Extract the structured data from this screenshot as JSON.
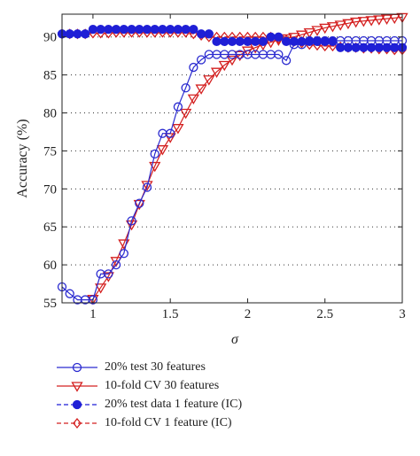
{
  "chart_data": {
    "type": "line",
    "xlabel": "σ",
    "ylabel": "Accuracy (%)",
    "xlim": [
      0.8,
      3.0
    ],
    "ylim": [
      55,
      93
    ],
    "xticks": [
      1,
      1.5,
      2,
      2.5,
      3
    ],
    "xtick_labels": [
      "1",
      "1.5",
      "2",
      "2.5",
      "3"
    ],
    "yticks": [
      55,
      60,
      65,
      70,
      75,
      80,
      85,
      90
    ],
    "ytick_labels": [
      "55",
      "60",
      "65",
      "70",
      "75",
      "80",
      "85",
      "90"
    ],
    "grid": "dotted, horizontal",
    "legend_placement": "below plot",
    "series": [
      {
        "name": "20% test 30 features",
        "color": "#2b2bd0",
        "marker": "circle-open",
        "line": "solid",
        "x": [
          0.8,
          0.85,
          0.9,
          0.95,
          1.0,
          1.05,
          1.1,
          1.15,
          1.2,
          1.25,
          1.3,
          1.35,
          1.4,
          1.45,
          1.5,
          1.55,
          1.6,
          1.65,
          1.7,
          1.75,
          1.8,
          1.85,
          1.9,
          1.95,
          2.0,
          2.05,
          2.1,
          2.15,
          2.2,
          2.25,
          2.3,
          2.35,
          2.4,
          2.45,
          2.5,
          2.55,
          2.6,
          2.65,
          2.7,
          2.75,
          2.8,
          2.85,
          2.9,
          2.95,
          3.0
        ],
        "y": [
          57.1,
          56.2,
          55.4,
          55.4,
          55.4,
          58.8,
          58.8,
          60.0,
          61.5,
          65.8,
          68.1,
          70.2,
          74.6,
          77.3,
          77.3,
          80.8,
          83.3,
          86.0,
          87.0,
          87.7,
          87.7,
          87.7,
          87.7,
          87.7,
          87.7,
          87.7,
          87.7,
          87.7,
          87.7,
          86.9,
          89.0,
          89.0,
          89.5,
          89.5,
          89.5,
          89.5,
          89.5,
          89.5,
          89.5,
          89.5,
          89.5,
          89.5,
          89.5,
          89.5,
          89.5
        ]
      },
      {
        "name": "10-fold CV 30 features",
        "color": "#d42020",
        "marker": "triangle-down-open",
        "line": "solid",
        "x": [
          1.0,
          1.05,
          1.1,
          1.15,
          1.2,
          1.25,
          1.3,
          1.35,
          1.4,
          1.45,
          1.5,
          1.55,
          1.6,
          1.65,
          1.7,
          1.75,
          1.8,
          1.85,
          1.9,
          1.95,
          2.0,
          2.05,
          2.1,
          2.15,
          2.2,
          2.25,
          2.3,
          2.35,
          2.4,
          2.45,
          2.5,
          2.55,
          2.6,
          2.65,
          2.7,
          2.75,
          2.8,
          2.85,
          2.9,
          2.95,
          3.0
        ],
        "y": [
          55.5,
          57.0,
          58.5,
          60.5,
          62.8,
          65.3,
          68.0,
          70.5,
          73.0,
          75.2,
          76.8,
          78.0,
          80.0,
          81.9,
          83.2,
          84.4,
          85.4,
          86.3,
          87.0,
          87.6,
          88.2,
          88.6,
          89.0,
          89.3,
          89.6,
          89.8,
          90.0,
          90.3,
          90.6,
          90.9,
          91.2,
          91.4,
          91.6,
          91.8,
          92.0,
          92.1,
          92.2,
          92.3,
          92.4,
          92.5,
          92.6
        ]
      },
      {
        "name": "20% test data 1 feature (IC)",
        "color": "#1f1fd6",
        "marker": "circle-filled",
        "line": "dashed",
        "x": [
          0.8,
          0.85,
          0.9,
          0.95,
          1.0,
          1.05,
          1.1,
          1.15,
          1.2,
          1.25,
          1.3,
          1.35,
          1.4,
          1.45,
          1.5,
          1.55,
          1.6,
          1.65,
          1.7,
          1.75,
          1.8,
          1.85,
          1.9,
          1.95,
          2.0,
          2.05,
          2.1,
          2.15,
          2.2,
          2.25,
          2.3,
          2.35,
          2.4,
          2.45,
          2.5,
          2.55,
          2.6,
          2.65,
          2.7,
          2.75,
          2.8,
          2.85,
          2.9,
          2.95,
          3.0
        ],
        "y": [
          90.4,
          90.4,
          90.4,
          90.4,
          91.0,
          91.0,
          91.0,
          91.0,
          91.0,
          91.0,
          91.0,
          91.0,
          91.0,
          91.0,
          91.0,
          91.0,
          91.0,
          91.0,
          90.4,
          90.4,
          89.4,
          89.4,
          89.4,
          89.4,
          89.4,
          89.4,
          89.4,
          90.0,
          90.0,
          89.4,
          89.4,
          89.4,
          89.4,
          89.4,
          89.4,
          89.4,
          88.6,
          88.6,
          88.6,
          88.6,
          88.6,
          88.6,
          88.6,
          88.6,
          88.6
        ]
      },
      {
        "name": "10-fold CV 1 feature (IC)",
        "color": "#d42020",
        "marker": "diamond-open",
        "line": "dashed",
        "x": [
          0.8,
          0.85,
          0.9,
          0.95,
          1.0,
          1.05,
          1.1,
          1.15,
          1.2,
          1.25,
          1.3,
          1.35,
          1.4,
          1.45,
          1.5,
          1.55,
          1.6,
          1.65,
          1.7,
          1.75,
          1.8,
          1.85,
          1.9,
          1.95,
          2.0,
          2.05,
          2.1,
          2.15,
          2.2,
          2.25,
          2.3,
          2.35,
          2.4,
          2.45,
          2.5,
          2.55,
          2.6,
          2.65,
          2.7,
          2.75,
          2.8,
          2.85,
          2.9,
          2.95,
          3.0
        ],
        "y": [
          90.4,
          90.4,
          90.4,
          90.4,
          90.5,
          90.5,
          90.5,
          90.6,
          90.6,
          90.6,
          90.6,
          90.6,
          90.6,
          90.6,
          90.6,
          90.6,
          90.6,
          90.4,
          90.2,
          90.0,
          90.0,
          90.0,
          90.0,
          90.0,
          90.0,
          90.0,
          90.0,
          90.0,
          89.8,
          89.6,
          89.4,
          89.2,
          89.0,
          88.9,
          88.8,
          88.8,
          88.7,
          88.6,
          88.6,
          88.5,
          88.5,
          88.4,
          88.4,
          88.3,
          88.3
        ]
      }
    ]
  }
}
